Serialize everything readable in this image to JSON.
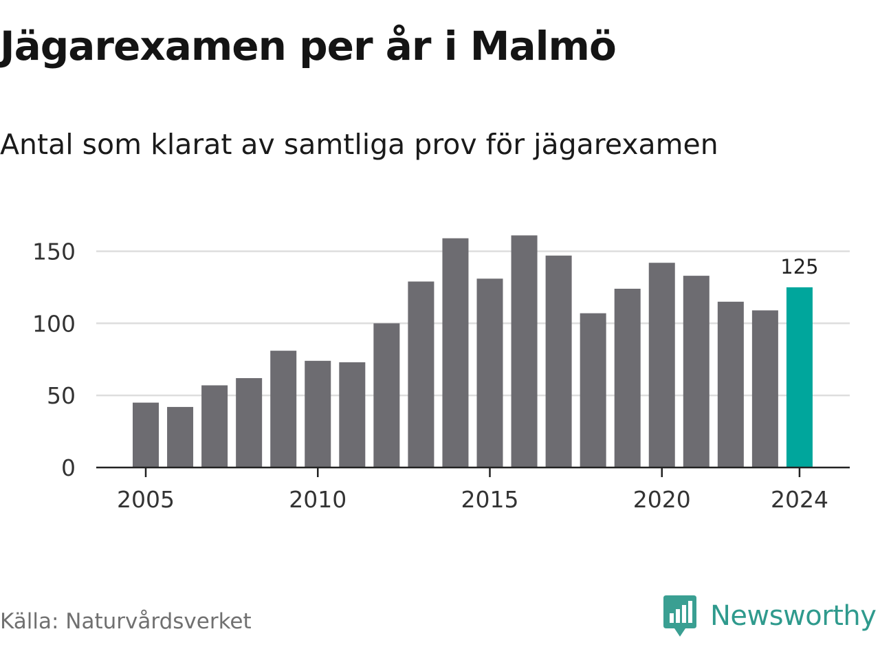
{
  "title": "Jägarexamen per år i Malmö",
  "subtitle": "Antal som klarat av samtliga prov för jägarexamen",
  "source": "Källa: Naturvårdsverket",
  "brand": {
    "name": "Newsworthy",
    "icon": "newsworthy-logo-icon",
    "color": "#2f9a8d"
  },
  "colors": {
    "bar": "#6d6c71",
    "highlight": "#00a69c",
    "grid": "#dddddd",
    "axis": "#222222"
  },
  "chart_data": {
    "type": "bar",
    "title": "Jägarexamen per år i Malmö",
    "subtitle": "Antal som klarat av samtliga prov för jägarexamen",
    "xlabel": "",
    "ylabel": "",
    "x": [
      2005,
      2006,
      2007,
      2008,
      2009,
      2010,
      2011,
      2012,
      2013,
      2014,
      2015,
      2016,
      2017,
      2018,
      2019,
      2020,
      2021,
      2022,
      2023,
      2024
    ],
    "values": [
      45,
      42,
      57,
      62,
      81,
      74,
      73,
      100,
      129,
      159,
      131,
      161,
      147,
      107,
      124,
      142,
      133,
      115,
      109,
      125
    ],
    "highlight_index": 19,
    "highlight_label": "125",
    "ylim": [
      0,
      165
    ],
    "yticks": [
      0,
      50,
      100,
      150
    ],
    "xticks": [
      2005,
      2010,
      2015,
      2020,
      2024
    ],
    "grid": true,
    "legend": "none"
  }
}
